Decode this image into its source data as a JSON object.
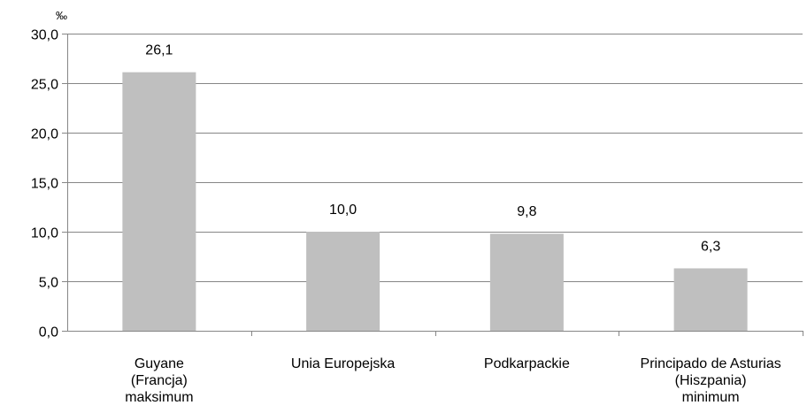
{
  "chart_data": {
    "type": "bar",
    "unit": "‰",
    "categories": [
      [
        "Guyane",
        "(Francja)",
        "maksimum"
      ],
      [
        "Unia Europejska"
      ],
      [
        "Podkarpackie"
      ],
      [
        "Principado de Asturias",
        "(Hiszpania)",
        "minimum"
      ]
    ],
    "values": [
      26.1,
      10.0,
      9.8,
      6.3
    ],
    "value_labels": [
      "26,1",
      "10,0",
      "9,8",
      "6,3"
    ],
    "ylim": [
      0,
      30
    ],
    "yticks": [
      0,
      5,
      10,
      15,
      20,
      25,
      30
    ],
    "ytick_labels": [
      "0,0",
      "5,0",
      "10,0",
      "15,0",
      "20,0",
      "25,0",
      "30,0"
    ],
    "grid": true,
    "colors": {
      "bar": "#bfbfbf",
      "grid": "#868686",
      "axis": "#868686"
    }
  }
}
